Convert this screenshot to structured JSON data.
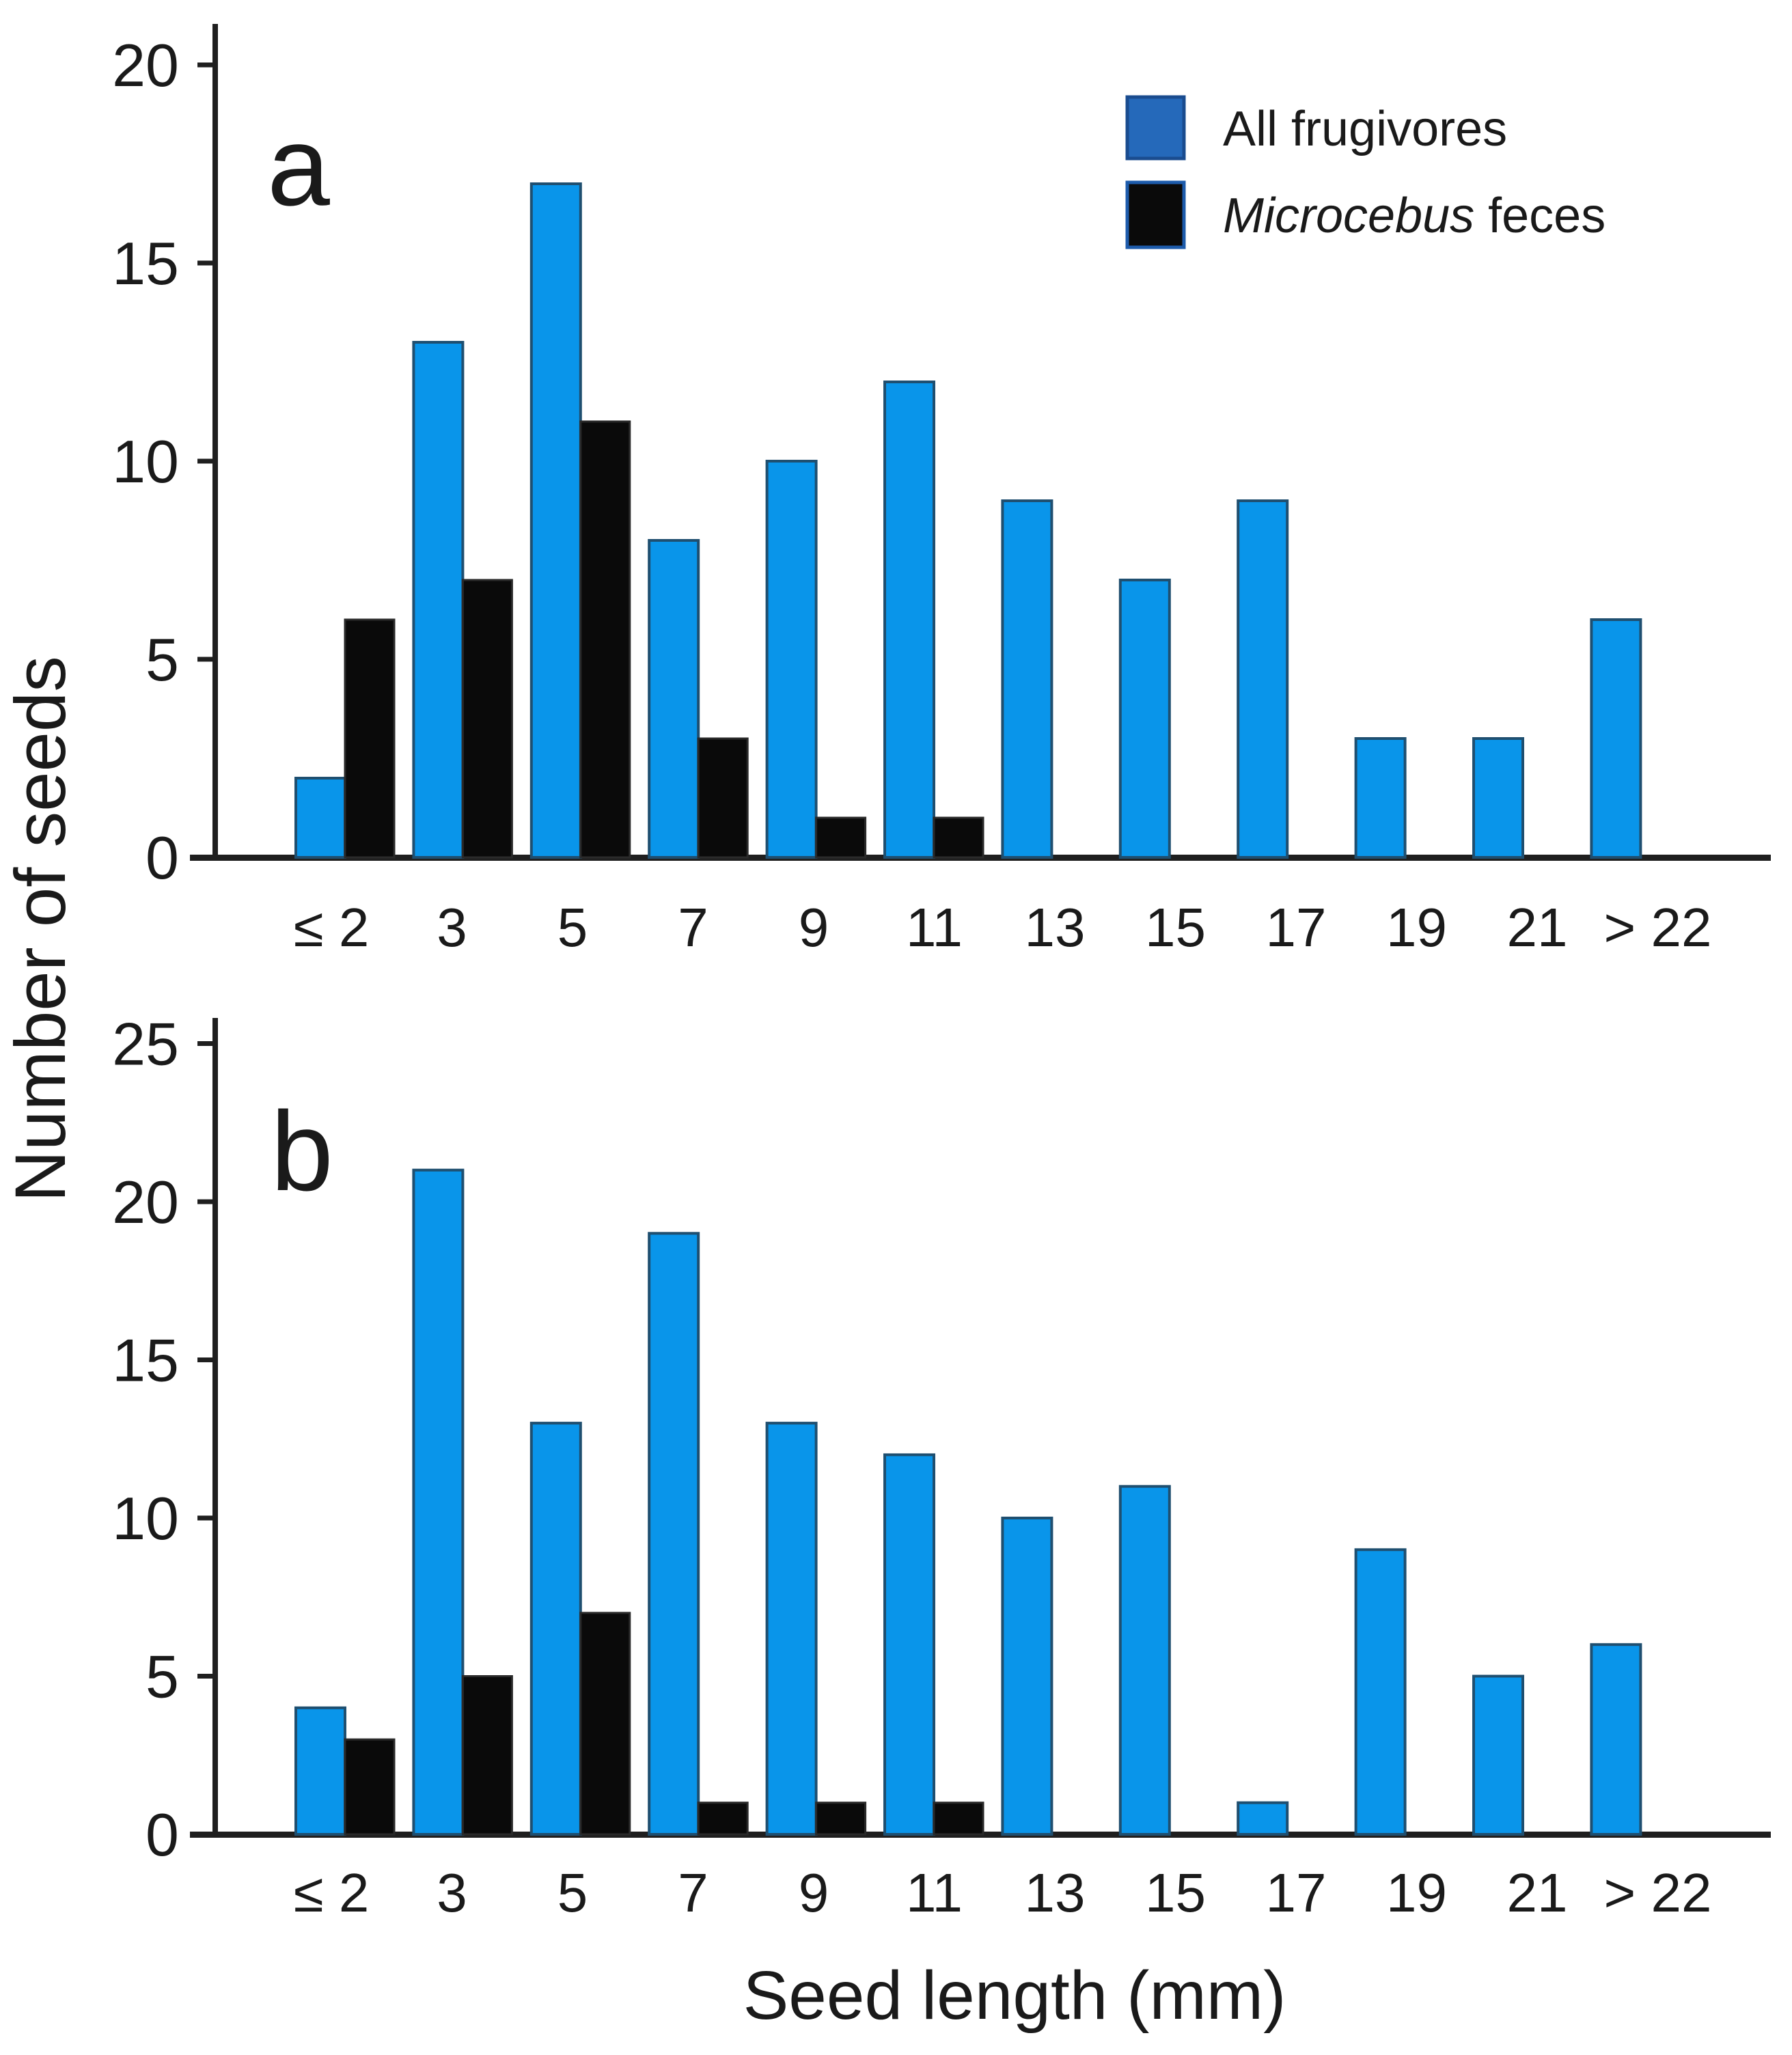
{
  "figure": {
    "y_axis_label": "Number of seeds",
    "x_axis_label": "Seed length (mm)",
    "legend": [
      {
        "label": "All frugivores",
        "color": "#2569ba"
      },
      {
        "label_italic": "Microcebus",
        "label_rest": " feces",
        "color": "#0a0a0a"
      }
    ]
  },
  "colors": {
    "bar_blue": "#0995ea",
    "bar_blue_stroke": "#1f4f70",
    "bar_black": "#0a0a0a",
    "bar_black_stroke": "#2a2a2a",
    "axis": "#1f1f1f",
    "text": "#1a1a1a"
  },
  "chart_data": [
    {
      "type": "bar",
      "panel_label": "a",
      "categories": [
        "≤ 2",
        "3",
        "5",
        "7",
        "9",
        "11",
        "13",
        "15",
        "17",
        "19",
        "21",
        "> 22"
      ],
      "series": [
        {
          "name": "All frugivores",
          "values": [
            2,
            13,
            17,
            8,
            10,
            12,
            9,
            7,
            9,
            3,
            3,
            6
          ]
        },
        {
          "name": "Microcebus feces",
          "values": [
            6,
            7,
            11,
            3,
            1,
            1,
            0,
            0,
            0,
            0,
            0,
            0
          ]
        }
      ],
      "title": "",
      "xlabel": "",
      "ylabel": "Number of seeds",
      "ylim": [
        0,
        20
      ],
      "yticks": [
        0,
        5,
        10,
        15,
        20
      ],
      "grid": false,
      "legend_position": "top-right"
    },
    {
      "type": "bar",
      "panel_label": "b",
      "categories": [
        "≤ 2",
        "3",
        "5",
        "7",
        "9",
        "11",
        "13",
        "15",
        "17",
        "19",
        "21",
        "> 22"
      ],
      "series": [
        {
          "name": "All frugivores",
          "values": [
            4,
            21,
            13,
            19,
            13,
            12,
            10,
            11,
            1,
            9,
            5,
            6
          ]
        },
        {
          "name": "Microcebus feces",
          "values": [
            3,
            5,
            7,
            1,
            1,
            1,
            0,
            0,
            0,
            0,
            0,
            0
          ]
        }
      ],
      "title": "",
      "xlabel": "Seed length (mm)",
      "ylabel": "Number of seeds",
      "ylim": [
        0,
        25
      ],
      "yticks": [
        0,
        5,
        10,
        15,
        20,
        25
      ],
      "grid": false,
      "legend_position": "none"
    }
  ]
}
